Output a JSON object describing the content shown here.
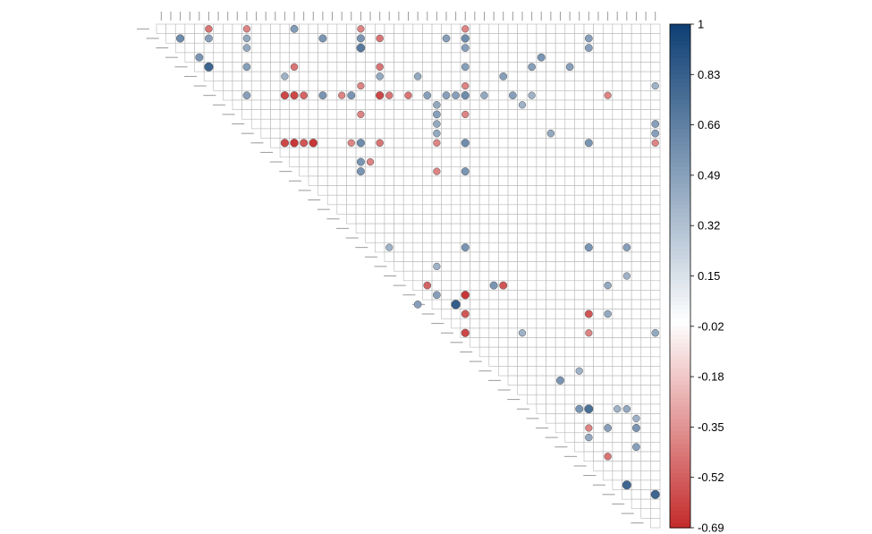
{
  "chart_data": {
    "type": "correlation-matrix",
    "layout": "upper-triangle",
    "marker": "circle",
    "grid": true,
    "n_vars": 53,
    "color_scale": {
      "min": -0.69,
      "max": 1,
      "low_color": "#c42b2b",
      "mid_color": "#ffffff",
      "high_color": "#0e3f74",
      "tick_labels": [
        "1",
        "0.83",
        "0.66",
        "0.49",
        "0.32",
        "0.15",
        "-0.02",
        "-0.18",
        "-0.35",
        "-0.52",
        "-0.69"
      ]
    },
    "cells": [
      [
        0,
        5,
        -0.45
      ],
      [
        0,
        9,
        -0.4
      ],
      [
        0,
        14,
        0.52
      ],
      [
        0,
        21,
        -0.4
      ],
      [
        0,
        32,
        -0.4
      ],
      [
        1,
        2,
        0.6
      ],
      [
        1,
        5,
        0.5
      ],
      [
        1,
        9,
        0.45
      ],
      [
        1,
        17,
        0.55
      ],
      [
        1,
        21,
        0.55
      ],
      [
        1,
        23,
        -0.45
      ],
      [
        1,
        30,
        0.5
      ],
      [
        1,
        32,
        0.6
      ],
      [
        1,
        45,
        0.5
      ],
      [
        2,
        9,
        0.45
      ],
      [
        2,
        21,
        0.7
      ],
      [
        2,
        32,
        0.5
      ],
      [
        2,
        45,
        0.5
      ],
      [
        3,
        4,
        0.55
      ],
      [
        3,
        40,
        0.55
      ],
      [
        4,
        5,
        0.8
      ],
      [
        4,
        9,
        0.5
      ],
      [
        4,
        14,
        -0.45
      ],
      [
        4,
        23,
        -0.45
      ],
      [
        4,
        32,
        0.5
      ],
      [
        4,
        39,
        0.5
      ],
      [
        4,
        43,
        0.5
      ],
      [
        5,
        13,
        0.4
      ],
      [
        5,
        23,
        0.45
      ],
      [
        5,
        27,
        0.45
      ],
      [
        5,
        36,
        0.5
      ],
      [
        6,
        21,
        -0.4
      ],
      [
        6,
        32,
        -0.4
      ],
      [
        6,
        52,
        0.4
      ],
      [
        7,
        9,
        0.5
      ],
      [
        7,
        13,
        -0.6
      ],
      [
        7,
        14,
        -0.6
      ],
      [
        7,
        15,
        -0.5
      ],
      [
        7,
        17,
        0.55
      ],
      [
        7,
        19,
        -0.4
      ],
      [
        7,
        20,
        0.55
      ],
      [
        7,
        23,
        -0.6
      ],
      [
        7,
        24,
        -0.45
      ],
      [
        7,
        26,
        -0.45
      ],
      [
        7,
        28,
        0.5
      ],
      [
        7,
        30,
        0.5
      ],
      [
        7,
        31,
        0.5
      ],
      [
        7,
        32,
        0.6
      ],
      [
        7,
        34,
        0.45
      ],
      [
        7,
        37,
        0.5
      ],
      [
        7,
        39,
        0.4
      ],
      [
        7,
        47,
        -0.4
      ],
      [
        8,
        29,
        0.45
      ],
      [
        8,
        38,
        0.4
      ],
      [
        9,
        21,
        -0.4
      ],
      [
        9,
        29,
        0.5
      ],
      [
        9,
        32,
        -0.4
      ],
      [
        10,
        29,
        0.45
      ],
      [
        10,
        52,
        0.5
      ],
      [
        11,
        29,
        0.45
      ],
      [
        11,
        41,
        0.45
      ],
      [
        11,
        52,
        0.5
      ],
      [
        12,
        13,
        -0.6
      ],
      [
        12,
        14,
        -0.65
      ],
      [
        12,
        15,
        -0.55
      ],
      [
        12,
        16,
        -0.65
      ],
      [
        12,
        20,
        -0.4
      ],
      [
        12,
        21,
        0.6
      ],
      [
        12,
        23,
        -0.45
      ],
      [
        12,
        29,
        -0.4
      ],
      [
        12,
        32,
        0.6
      ],
      [
        12,
        45,
        0.55
      ],
      [
        12,
        52,
        -0.4
      ],
      [
        14,
        21,
        0.55
      ],
      [
        14,
        22,
        -0.4
      ],
      [
        15,
        21,
        0.55
      ],
      [
        15,
        29,
        -0.4
      ],
      [
        15,
        32,
        0.55
      ],
      [
        23,
        24,
        0.4
      ],
      [
        23,
        32,
        0.55
      ],
      [
        23,
        45,
        0.55
      ],
      [
        23,
        49,
        0.5
      ],
      [
        25,
        29,
        0.4
      ],
      [
        26,
        49,
        0.4
      ],
      [
        27,
        28,
        -0.5
      ],
      [
        27,
        35,
        0.55
      ],
      [
        27,
        36,
        -0.55
      ],
      [
        27,
        47,
        0.45
      ],
      [
        28,
        29,
        0.5
      ],
      [
        28,
        32,
        -0.65
      ],
      [
        29,
        27,
        0.5
      ],
      [
        29,
        31,
        0.85
      ],
      [
        30,
        32,
        -0.55
      ],
      [
        30,
        45,
        -0.55
      ],
      [
        30,
        47,
        0.45
      ],
      [
        32,
        32,
        -0.6
      ],
      [
        32,
        38,
        0.4
      ],
      [
        32,
        45,
        -0.4
      ],
      [
        32,
        52,
        0.45
      ],
      [
        36,
        44,
        0.4
      ],
      [
        37,
        42,
        0.55
      ],
      [
        40,
        44,
        0.55
      ],
      [
        40,
        45,
        0.75
      ],
      [
        40,
        48,
        0.4
      ],
      [
        40,
        49,
        0.45
      ],
      [
        41,
        50,
        0.4
      ],
      [
        42,
        45,
        -0.4
      ],
      [
        42,
        47,
        0.5
      ],
      [
        42,
        50,
        0.55
      ],
      [
        43,
        45,
        0.45
      ],
      [
        44,
        50,
        0.5
      ],
      [
        45,
        47,
        -0.45
      ],
      [
        48,
        49,
        0.8
      ],
      [
        49,
        52,
        0.8
      ]
    ]
  }
}
